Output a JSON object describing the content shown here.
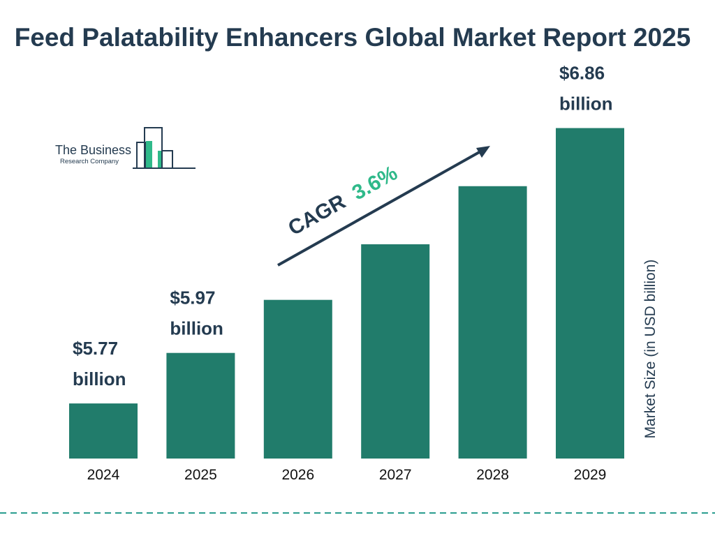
{
  "title": "Feed Palatability Enhancers Global Market Report 2025",
  "logo": {
    "line1": "The Business",
    "line2": "Research Company"
  },
  "cagr": {
    "label": "CAGR",
    "value": "3.6%"
  },
  "colors": {
    "bar": "#217c6b",
    "text": "#243b50",
    "accent": "#2fb98a",
    "dash": "#2a9d8f"
  },
  "chart_data": {
    "type": "bar",
    "title": "Feed Palatability Enhancers Global Market Report 2025",
    "categories": [
      "2024",
      "2025",
      "2026",
      "2027",
      "2028",
      "2029"
    ],
    "values": [
      5.77,
      5.97,
      6.18,
      6.4,
      6.63,
      6.86
    ],
    "data_labels": [
      {
        "index": 0,
        "line1": "$5.77",
        "line2": "billion"
      },
      {
        "index": 1,
        "line1": "$5.97",
        "line2": "billion"
      },
      {
        "index": 5,
        "line1": "$6.86",
        "line2": "billion"
      }
    ],
    "xlabel": "",
    "ylabel": "Market Size (in USD billion)",
    "grid": false,
    "legend": "none"
  }
}
